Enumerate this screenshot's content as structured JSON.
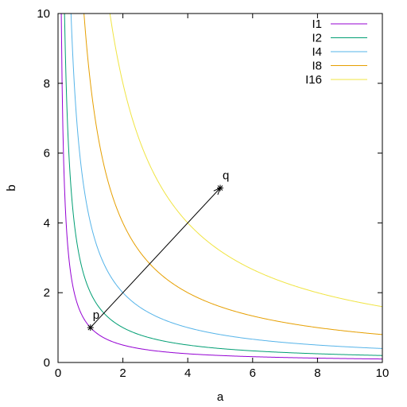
{
  "chart_data": {
    "type": "line",
    "xlabel": "a",
    "ylabel": "b",
    "xlim": [
      0,
      10
    ],
    "ylim": [
      0,
      10
    ],
    "x_ticks": [
      0,
      2,
      4,
      6,
      8,
      10
    ],
    "y_ticks": [
      0,
      2,
      4,
      6,
      8,
      10
    ],
    "x_tick_labels": [
      "0",
      "2",
      "4",
      "6",
      "8",
      "10"
    ],
    "y_tick_labels": [
      "0",
      "2",
      "4",
      "6",
      "8",
      "10"
    ],
    "grid": false,
    "legend_position": "top-right",
    "series": [
      {
        "name": "I1",
        "equation": "a*b = 1",
        "product": 1,
        "color": "#9400d3"
      },
      {
        "name": "I2",
        "equation": "a*b = 2",
        "product": 2,
        "color": "#009e73"
      },
      {
        "name": "I4",
        "equation": "a*b = 4",
        "product": 4,
        "color": "#56b4e9"
      },
      {
        "name": "I8",
        "equation": "a*b = 8",
        "product": 8,
        "color": "#e69f00"
      },
      {
        "name": "I16",
        "equation": "a*b = 16",
        "product": 16,
        "color": "#f0e442"
      }
    ],
    "points": [
      {
        "label": "p",
        "x": 1,
        "y": 1
      },
      {
        "label": "q",
        "x": 5,
        "y": 5
      }
    ],
    "arrow": {
      "from": "p",
      "to": "q"
    }
  }
}
